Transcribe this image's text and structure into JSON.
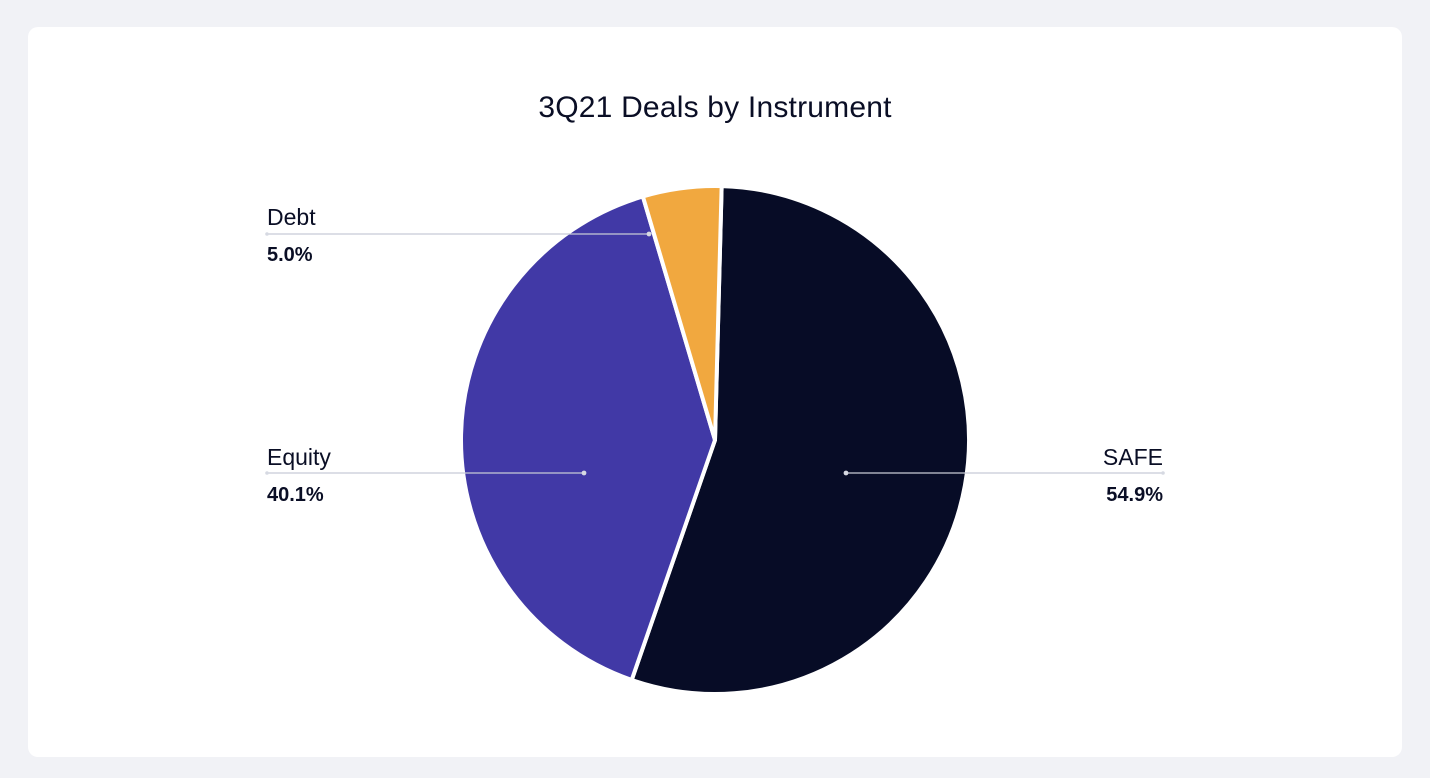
{
  "chart_data": {
    "type": "pie",
    "title": "3Q21 Deals by Instrument",
    "slices": [
      {
        "label": "SAFE",
        "value": 54.9,
        "value_label": "54.9%",
        "color": "#070c26"
      },
      {
        "label": "Equity",
        "value": 40.1,
        "value_label": "40.1%",
        "color": "#4139a6"
      },
      {
        "label": "Debt",
        "value": 5.0,
        "value_label": "5.0%",
        "color": "#f1a83f"
      }
    ],
    "start_angle_deg": 1.5,
    "direction": "clockwise"
  },
  "colors": {
    "background": "#f1f2f6",
    "card": "#ffffff",
    "text": "#0a0e25",
    "leader_line": "#c8cbd6"
  }
}
